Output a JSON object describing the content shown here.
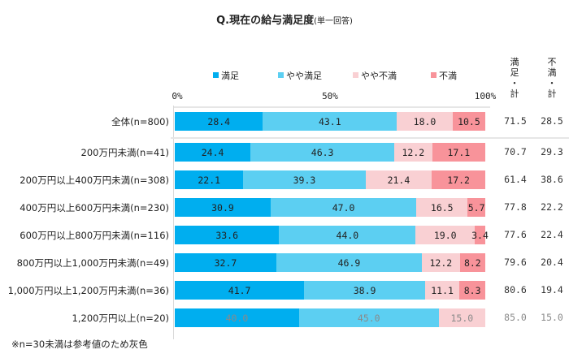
{
  "title": "Q.現在の給与満足度",
  "subtitle": "(単一回答)",
  "legend": [
    {
      "label": "満足",
      "color": "#00aeef"
    },
    {
      "label": "やや満足",
      "color": "#5ccff2"
    },
    {
      "label": "やや不満",
      "color": "#f9d0d3"
    },
    {
      "label": "不満",
      "color": "#f8939a"
    }
  ],
  "axis_ticks": [
    "0%",
    "50%",
    "100%"
  ],
  "total_columns": [
    {
      "chars": [
        "満",
        "足",
        "・",
        "計"
      ]
    },
    {
      "chars": [
        "不",
        "満",
        "・",
        "計"
      ]
    }
  ],
  "note": "※n=30未満は参考値のため灰色",
  "chart_data": {
    "type": "bar",
    "orientation": "horizontal",
    "stacked": true,
    "title": "Q.現在の給与満足度(単一回答)",
    "xlabel": "",
    "ylabel": "",
    "xlim": [
      0,
      100
    ],
    "x_ticks": [
      "0%",
      "50%",
      "100%"
    ],
    "legend_position": "top",
    "categories": [
      "全体(n=800)",
      "200万円未満(n=41)",
      "200万円以上400万円未満(n=308)",
      "400万円以上600万円未満(n=230)",
      "600万円以上800万円未満(n=116)",
      "800万円以上1,000万円未満(n=49)",
      "1,000万円以上1,200万円未満(n=36)",
      "1,200万円以上(n=20)"
    ],
    "gray_rows": [
      false,
      false,
      false,
      false,
      false,
      false,
      false,
      true
    ],
    "series": [
      {
        "name": "満足",
        "color": "#00aeef",
        "values": [
          28.4,
          24.4,
          22.1,
          30.9,
          33.6,
          32.7,
          41.7,
          40.0
        ],
        "labels": [
          "28.4",
          "24.4",
          "22.1",
          "30.9",
          "33.6",
          "32.7",
          "41.7",
          "40.0"
        ]
      },
      {
        "name": "やや満足",
        "color": "#5ccff2",
        "values": [
          43.1,
          46.3,
          39.3,
          47.0,
          44.0,
          46.9,
          38.9,
          45.0
        ],
        "labels": [
          "43.1",
          "46.3",
          "39.3",
          "47.0",
          "44.0",
          "46.9",
          "38.9",
          "45.0"
        ]
      },
      {
        "name": "やや不満",
        "color": "#f9d0d3",
        "values": [
          18.0,
          12.2,
          21.4,
          16.5,
          19.0,
          12.2,
          11.1,
          15.0
        ],
        "labels": [
          "18.0",
          "12.2",
          "21.4",
          "16.5",
          "19.0",
          "12.2",
          "11.1",
          "15.0"
        ]
      },
      {
        "name": "不満",
        "color": "#f8939a",
        "values": [
          10.5,
          17.1,
          17.2,
          5.7,
          3.4,
          8.2,
          8.3,
          0
        ],
        "labels": [
          "10.5",
          "17.1",
          "17.2",
          "5.7",
          "3.4",
          "8.2",
          "8.3",
          ""
        ]
      }
    ],
    "totals": {
      "satisfied": {
        "header": "満足・計",
        "values": [
          "71.5",
          "70.7",
          "61.4",
          "77.8",
          "77.6",
          "79.6",
          "80.6",
          "85.0"
        ]
      },
      "dissatisfied": {
        "header": "不満・計",
        "values": [
          "28.5",
          "29.3",
          "38.6",
          "22.2",
          "22.4",
          "20.4",
          "19.4",
          "15.0"
        ]
      }
    }
  }
}
